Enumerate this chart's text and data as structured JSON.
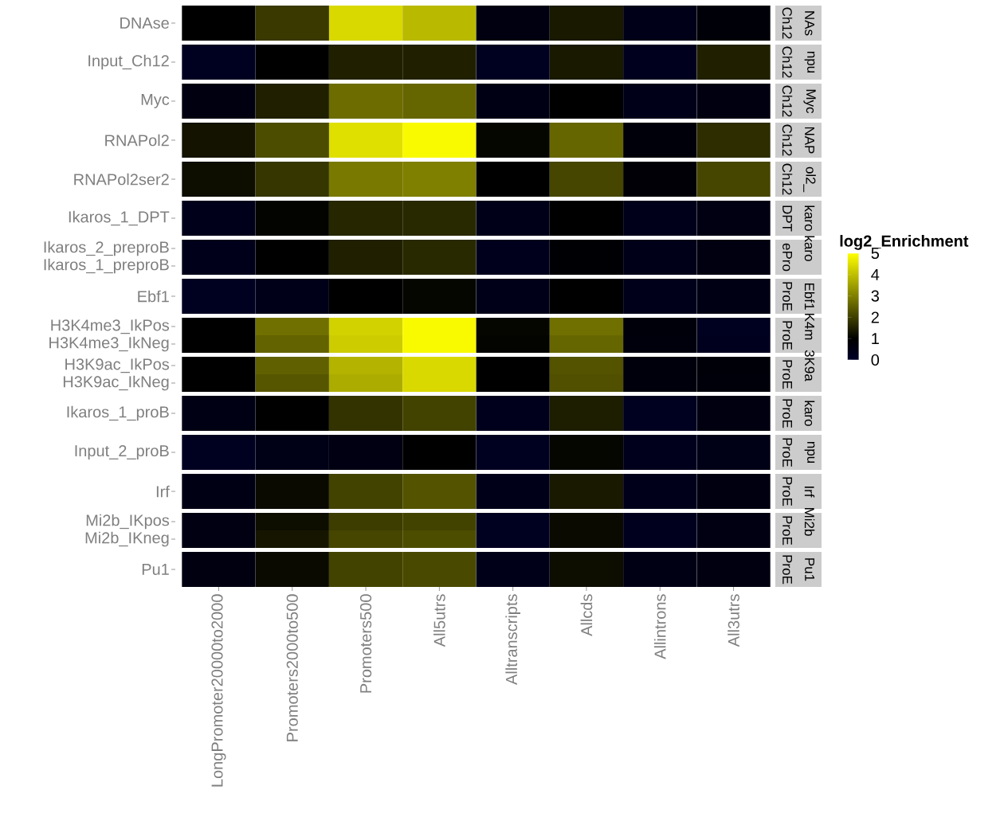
{
  "chart_data": {
    "type": "heatmap",
    "categories": [
      "LongPromoter20000to2000",
      "Promoters2000to500",
      "Promoters500",
      "All5utrs",
      "Alltranscripts",
      "Allcds",
      "Allintrons",
      "All3utrs"
    ],
    "y_categories": [
      "DNAse",
      "Input_Ch12",
      "Myc",
      "RNAPol2",
      "RNAPol2ser2",
      "Ikaros_1_DPT",
      "Ikaros_2_preproB",
      "Ikaros_1_preproB",
      "Ebf1",
      "H3K4me3_IkPos",
      "H3K4me3_IkNeg",
      "H3K9ac_IkPos",
      "H3K9ac_IkNeg",
      "Ikaros_1_proB",
      "Input_2_proB",
      "Irf",
      "Mi2b_IKpos",
      "Mi2b_IKneg",
      "Pu1"
    ],
    "y2_categories": [
      "NAs",
      "npu",
      "Myc",
      "NAP",
      "ol2_",
      "karo",
      "karo",
      null,
      "Ebf1",
      "K4m",
      null,
      "3K9a",
      null,
      "karo",
      "npu",
      "Irf",
      "Mi2b",
      null,
      "Pu1"
    ],
    "cells": [
      [
        1.0,
        1.9,
        4.4,
        3.9,
        0.6,
        1.4,
        0.4,
        0.8
      ],
      [
        0.2,
        1.0,
        1.5,
        1.5,
        0.2,
        1.4,
        0.25,
        1.5
      ],
      [
        0.6,
        1.5,
        2.7,
        2.6,
        0.5,
        1.0,
        0.4,
        0.6
      ],
      [
        1.3,
        2.2,
        4.5,
        4.9,
        1.1,
        2.6,
        0.75,
        1.7
      ],
      [
        1.2,
        1.85,
        2.9,
        3.0,
        1.0,
        2.1,
        0.85,
        2.1
      ],
      [
        0.35,
        1.05,
        1.6,
        1.65,
        0.4,
        1.0,
        0.35,
        0.55
      ],
      [
        0.35,
        1.0,
        1.5,
        1.65,
        0.3,
        0.9,
        0.4,
        0.6
      ],
      [
        0.35,
        1.0,
        1.5,
        1.65,
        0.3,
        0.9,
        0.4,
        0.6
      ],
      [
        0.2,
        0.4,
        1.0,
        1.1,
        0.4,
        1.0,
        0.35,
        0.5
      ],
      [
        1.0,
        2.75,
        4.3,
        4.9,
        1.1,
        2.75,
        0.75,
        0.2
      ],
      [
        1.0,
        2.55,
        4.2,
        4.9,
        1.05,
        2.6,
        0.7,
        0.25
      ],
      [
        1.0,
        2.5,
        3.8,
        4.4,
        1.0,
        2.3,
        0.7,
        0.8
      ],
      [
        1.0,
        2.35,
        3.7,
        4.4,
        1.0,
        2.25,
        0.7,
        0.75
      ],
      [
        0.5,
        1.0,
        1.8,
        2.05,
        0.3,
        1.45,
        0.2,
        0.6
      ],
      [
        0.2,
        0.45,
        0.55,
        1.0,
        0.2,
        1.1,
        0.3,
        0.45
      ],
      [
        0.5,
        1.15,
        2.05,
        2.3,
        0.4,
        1.4,
        0.35,
        0.6
      ],
      [
        0.55,
        1.2,
        1.95,
        2.05,
        0.2,
        1.15,
        0.25,
        0.55
      ],
      [
        0.55,
        1.35,
        2.1,
        2.2,
        0.2,
        1.15,
        0.25,
        0.55
      ],
      [
        0.6,
        1.15,
        2.05,
        2.15,
        0.4,
        1.2,
        0.5,
        0.6
      ]
    ],
    "annotations": [
      "Ch12",
      "Ch12",
      "Ch12",
      "Ch12",
      "Ch12",
      "DPT",
      "ePro",
      "ProE",
      "ProE",
      "ProE",
      "ProE",
      "ProE",
      "ProE",
      "ProE",
      "ProE"
    ],
    "clabel": "log2_Enrichment",
    "clim": [
      0,
      5
    ],
    "cticks": [
      0,
      1,
      2,
      3,
      4,
      5
    ]
  }
}
